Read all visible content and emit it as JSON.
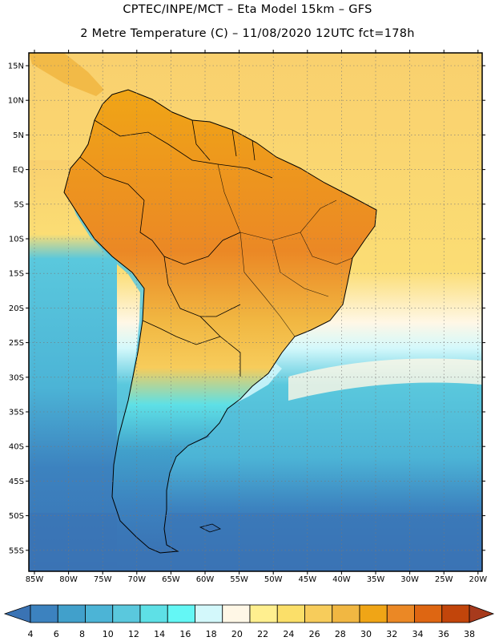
{
  "title_line1": "CPTEC/INPE/MCT –  Eta Model 15km – GFS",
  "title_line2": "2 Metre Temperature (C) – 11/08/2020 12UTC fct=178h",
  "lat_labels": [
    "15N",
    "10N",
    "5N",
    "EQ",
    "5S",
    "10S",
    "15S",
    "20S",
    "25S",
    "30S",
    "35S",
    "40S",
    "45S",
    "50S",
    "55S"
  ],
  "lon_labels": [
    "85W",
    "80W",
    "75W",
    "70W",
    "65W",
    "60W",
    "55W",
    "50W",
    "45W",
    "40W",
    "35W",
    "30W",
    "25W",
    "20W"
  ],
  "colorbar": {
    "levels": [
      "4",
      "6",
      "8",
      "10",
      "12",
      "14",
      "16",
      "18",
      "20",
      "22",
      "24",
      "26",
      "28",
      "30",
      "32",
      "34",
      "36",
      "38"
    ],
    "colors": [
      "#3a73b4",
      "#3c82bf",
      "#41a0cb",
      "#4cb4d6",
      "#5ac8dd",
      "#5ee0e6",
      "#64f7f5",
      "#d3f8fb",
      "#fff7e6",
      "#ffef8f",
      "#fbdf69",
      "#f7cc5b",
      "#f1b742",
      "#f0a516",
      "#eb8825",
      "#de6612",
      "#c2450b",
      "#a73a1c"
    ]
  },
  "colors": {
    "ocean_tropical": "#f9d06e",
    "ocean_cool": "#5ac8dd",
    "ocean_cold": "#3c82bf",
    "land_hot": "#eb8825",
    "land_warm": "#f1b742",
    "land_cold": "#3a73b4"
  }
}
